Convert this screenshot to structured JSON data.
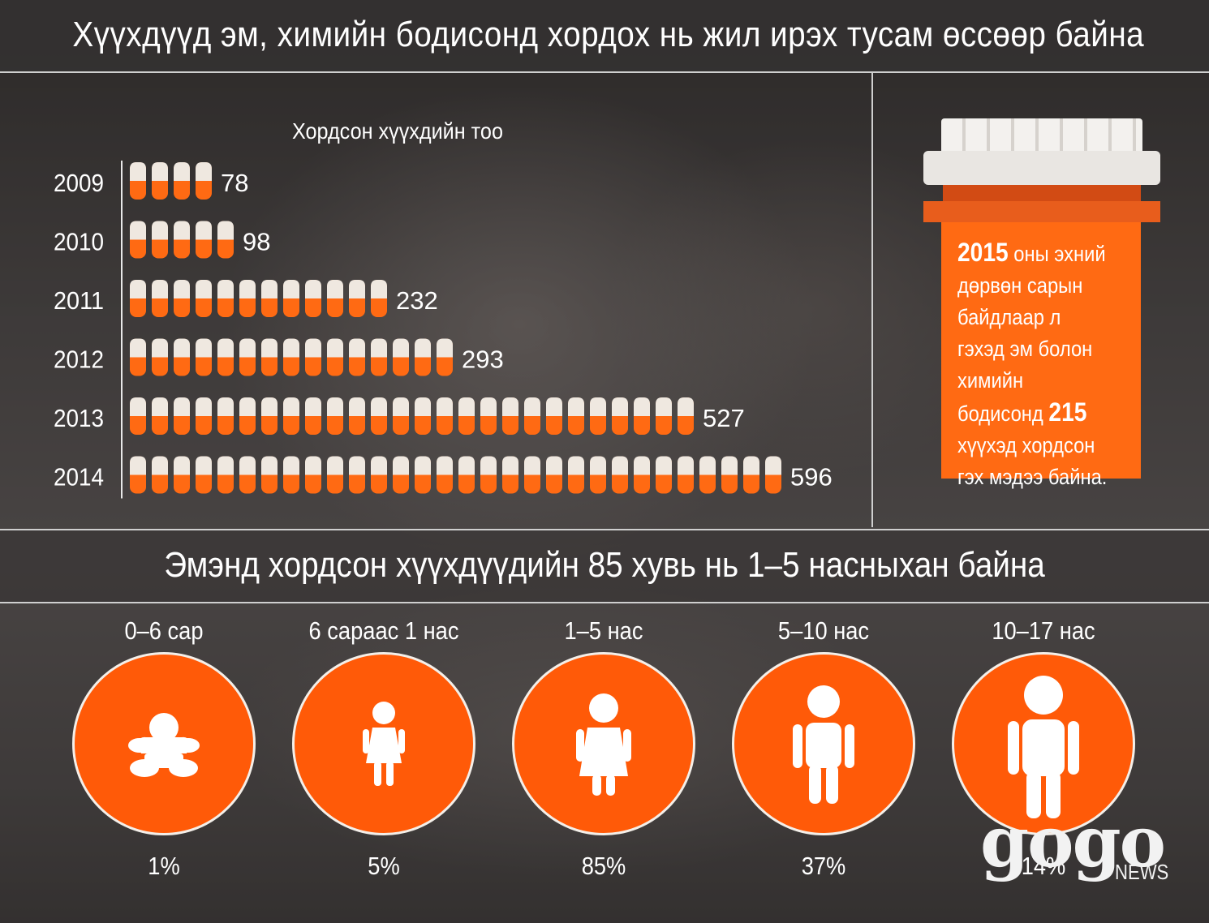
{
  "title": "Хүүхдүүд эм, химийн бодисонд хордох нь жил ирэх тусам өссөөр байна",
  "subtitle": "Эмэнд хордсон хүүхдүүдийн 85 хувь нь 1–5 насныхан байна",
  "colors": {
    "accent": "#ff6a13",
    "pill_top": "#efe8e0",
    "text": "#ffffff"
  },
  "bottle": {
    "year": "2015",
    "text_a": "оны эхний дөрвөн сарын байдлаар л гэхэд эм болон химийн бодисонд",
    "count": "215",
    "text_b": "хүүхэд хордсон гэх мэдээ байна."
  },
  "chart_data": {
    "type": "bar",
    "title": "Хордсон хүүхдийн тоо",
    "categories": [
      "2009",
      "2010",
      "2011",
      "2012",
      "2013",
      "2014"
    ],
    "values": [
      78,
      98,
      232,
      293,
      527,
      596
    ],
    "pill_counts": [
      4,
      5,
      12,
      15,
      26,
      30
    ],
    "orientation": "horizontal",
    "mark": "pill-icons"
  },
  "age_groups": [
    {
      "label": "0–6 сар",
      "percent": "1%",
      "icon": "baby-icon"
    },
    {
      "label": "6 сараас 1 нас",
      "percent": "5%",
      "icon": "toddler-icon"
    },
    {
      "label": "1–5 нас",
      "percent": "85%",
      "icon": "girl-icon"
    },
    {
      "label": "5–10 нас",
      "percent": "37%",
      "icon": "child-icon"
    },
    {
      "label": "10–17 нас",
      "percent": "14%",
      "icon": "teen-icon"
    }
  ],
  "logo": {
    "brand": "gogo",
    "sub": "NEWS"
  }
}
